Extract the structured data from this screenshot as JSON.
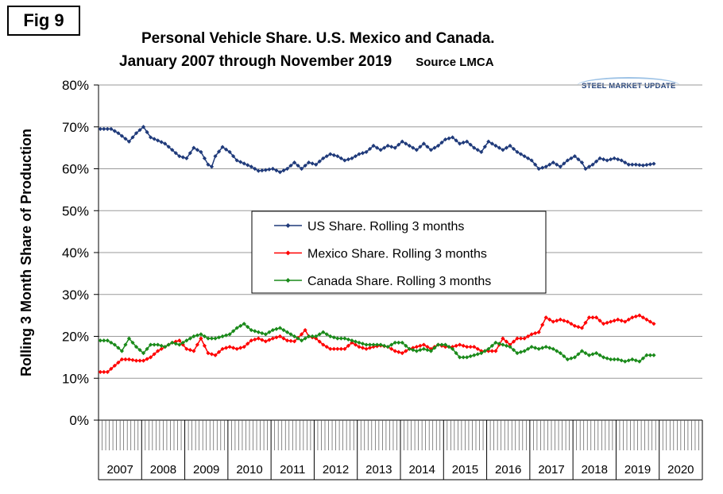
{
  "fig_label": "Fig 9",
  "title_line1": "Personal Vehicle Share. U.S. Mexico and Canada.",
  "title_line2": "January 2007 through November 2019",
  "source": "Source LMCA",
  "brand": "STEEL MARKET UPDATE",
  "chart_data": {
    "type": "line",
    "ylabel": "Rolling 3 Month Share of Production",
    "ylim": [
      0,
      80
    ],
    "yticks": [
      "0%",
      "10%",
      "20%",
      "30%",
      "40%",
      "50%",
      "60%",
      "70%",
      "80%"
    ],
    "x_years": [
      "2007",
      "2008",
      "2009",
      "2010",
      "2011",
      "2012",
      "2013",
      "2014",
      "2015",
      "2016",
      "2017",
      "2018",
      "2019",
      "2020"
    ],
    "x_start": "2007-01",
    "x_end": "2019-11",
    "grid": "horizontal",
    "legend_position": "center",
    "series": [
      {
        "name": "US Share. Rolling 3 months",
        "color": "#1f3a7a",
        "anchors": [
          [
            0,
            69.5
          ],
          [
            3,
            69.5
          ],
          [
            5,
            68.5
          ],
          [
            8,
            66.5
          ],
          [
            10,
            68.5
          ],
          [
            12,
            70
          ],
          [
            14,
            67.5
          ],
          [
            18,
            66
          ],
          [
            22,
            63
          ],
          [
            24,
            62.5
          ],
          [
            26,
            65
          ],
          [
            28,
            64
          ],
          [
            30,
            61
          ],
          [
            31,
            60.5
          ],
          [
            32,
            63
          ],
          [
            34,
            65.2
          ],
          [
            36,
            64
          ],
          [
            38,
            62
          ],
          [
            42,
            60.5
          ],
          [
            44,
            59.5
          ],
          [
            46,
            59.7
          ],
          [
            48,
            60
          ],
          [
            50,
            59.2
          ],
          [
            52,
            60
          ],
          [
            54,
            61.5
          ],
          [
            56,
            60
          ],
          [
            58,
            61.5
          ],
          [
            60,
            61
          ],
          [
            62,
            62.5
          ],
          [
            64,
            63.5
          ],
          [
            66,
            63
          ],
          [
            68,
            62
          ],
          [
            70,
            62.5
          ],
          [
            72,
            63.5
          ],
          [
            74,
            64
          ],
          [
            76,
            65.5
          ],
          [
            78,
            64.5
          ],
          [
            80,
            65.5
          ],
          [
            82,
            65
          ],
          [
            84,
            66.5
          ],
          [
            86,
            65.5
          ],
          [
            88,
            64.5
          ],
          [
            90,
            66
          ],
          [
            92,
            64.5
          ],
          [
            94,
            65.5
          ],
          [
            96,
            67
          ],
          [
            98,
            67.5
          ],
          [
            100,
            66
          ],
          [
            102,
            66.5
          ],
          [
            104,
            65
          ],
          [
            106,
            64
          ],
          [
            108,
            66.5
          ],
          [
            110,
            65.5
          ],
          [
            112,
            64.5
          ],
          [
            114,
            65.5
          ],
          [
            116,
            64
          ],
          [
            118,
            63
          ],
          [
            120,
            62
          ],
          [
            122,
            60
          ],
          [
            124,
            60.5
          ],
          [
            126,
            61.5
          ],
          [
            128,
            60.5
          ],
          [
            130,
            62
          ],
          [
            132,
            63
          ],
          [
            134,
            61.5
          ],
          [
            135,
            60
          ],
          [
            137,
            61
          ],
          [
            139,
            62.5
          ],
          [
            141,
            62
          ],
          [
            143,
            62.5
          ],
          [
            145,
            62
          ],
          [
            147,
            61
          ],
          [
            149,
            61
          ],
          [
            151,
            60.8
          ],
          [
            154,
            61.2
          ]
        ]
      },
      {
        "name": "Mexico Share. Rolling 3 months",
        "color": "#ff0000",
        "anchors": [
          [
            0,
            11.5
          ],
          [
            2,
            11.5
          ],
          [
            4,
            13
          ],
          [
            6,
            14.5
          ],
          [
            8,
            14.5
          ],
          [
            10,
            14.2
          ],
          [
            12,
            14.2
          ],
          [
            14,
            15
          ],
          [
            16,
            16.5
          ],
          [
            18,
            17.5
          ],
          [
            20,
            18.5
          ],
          [
            22,
            19
          ],
          [
            24,
            17
          ],
          [
            26,
            16.5
          ],
          [
            28,
            19.5
          ],
          [
            30,
            16
          ],
          [
            32,
            15.5
          ],
          [
            34,
            17
          ],
          [
            36,
            17.5
          ],
          [
            38,
            17
          ],
          [
            40,
            17.5
          ],
          [
            42,
            19
          ],
          [
            44,
            19.5
          ],
          [
            46,
            18.8
          ],
          [
            48,
            19.5
          ],
          [
            50,
            20
          ],
          [
            52,
            19
          ],
          [
            54,
            18.8
          ],
          [
            56,
            20.5
          ],
          [
            57,
            21.5
          ],
          [
            58,
            20
          ],
          [
            60,
            19.5
          ],
          [
            62,
            18
          ],
          [
            64,
            17
          ],
          [
            66,
            17
          ],
          [
            68,
            17
          ],
          [
            70,
            18.5
          ],
          [
            72,
            17.5
          ],
          [
            74,
            17
          ],
          [
            76,
            17.5
          ],
          [
            78,
            17.8
          ],
          [
            80,
            17.5
          ],
          [
            82,
            16.5
          ],
          [
            84,
            16
          ],
          [
            86,
            17
          ],
          [
            88,
            17.5
          ],
          [
            90,
            18
          ],
          [
            92,
            17
          ],
          [
            94,
            18
          ],
          [
            96,
            17.5
          ],
          [
            98,
            17.5
          ],
          [
            100,
            18
          ],
          [
            102,
            17.5
          ],
          [
            104,
            17.5
          ],
          [
            106,
            16.5
          ],
          [
            108,
            16.5
          ],
          [
            110,
            16.5
          ],
          [
            112,
            19.5
          ],
          [
            114,
            18
          ],
          [
            116,
            19.5
          ],
          [
            118,
            19.5
          ],
          [
            120,
            20.5
          ],
          [
            122,
            21
          ],
          [
            124,
            24.5
          ],
          [
            126,
            23.5
          ],
          [
            128,
            24
          ],
          [
            130,
            23.5
          ],
          [
            132,
            22.5
          ],
          [
            134,
            22
          ],
          [
            136,
            24.5
          ],
          [
            138,
            24.5
          ],
          [
            140,
            23
          ],
          [
            142,
            23.5
          ],
          [
            144,
            24
          ],
          [
            146,
            23.5
          ],
          [
            148,
            24.5
          ],
          [
            150,
            25
          ],
          [
            152,
            24
          ],
          [
            154,
            23
          ]
        ]
      },
      {
        "name": "Canada Share. Rolling 3 months",
        "color": "#1a8a1a",
        "anchors": [
          [
            0,
            19
          ],
          [
            2,
            19
          ],
          [
            4,
            18
          ],
          [
            6,
            16.5
          ],
          [
            8,
            19.5
          ],
          [
            10,
            17.5
          ],
          [
            12,
            16
          ],
          [
            14,
            18
          ],
          [
            16,
            18
          ],
          [
            18,
            17.5
          ],
          [
            20,
            18.5
          ],
          [
            22,
            18
          ],
          [
            24,
            19
          ],
          [
            26,
            20
          ],
          [
            28,
            20.5
          ],
          [
            30,
            19.5
          ],
          [
            32,
            19.5
          ],
          [
            34,
            20
          ],
          [
            36,
            20.5
          ],
          [
            38,
            22
          ],
          [
            40,
            23
          ],
          [
            42,
            21.5
          ],
          [
            44,
            21
          ],
          [
            46,
            20.5
          ],
          [
            48,
            21.5
          ],
          [
            50,
            22
          ],
          [
            52,
            21
          ],
          [
            54,
            20
          ],
          [
            56,
            19
          ],
          [
            58,
            20
          ],
          [
            60,
            20
          ],
          [
            62,
            21
          ],
          [
            64,
            20
          ],
          [
            66,
            19.5
          ],
          [
            68,
            19.5
          ],
          [
            70,
            19
          ],
          [
            72,
            18.5
          ],
          [
            74,
            18
          ],
          [
            76,
            18
          ],
          [
            78,
            18
          ],
          [
            80,
            17.5
          ],
          [
            82,
            18.5
          ],
          [
            84,
            18.5
          ],
          [
            86,
            17
          ],
          [
            88,
            16.5
          ],
          [
            90,
            17
          ],
          [
            92,
            16.5
          ],
          [
            94,
            18
          ],
          [
            96,
            18
          ],
          [
            98,
            17
          ],
          [
            100,
            15
          ],
          [
            102,
            15
          ],
          [
            104,
            15.5
          ],
          [
            106,
            16
          ],
          [
            108,
            17
          ],
          [
            110,
            18.5
          ],
          [
            112,
            18
          ],
          [
            114,
            17.5
          ],
          [
            116,
            16
          ],
          [
            118,
            16.5
          ],
          [
            120,
            17.5
          ],
          [
            122,
            17
          ],
          [
            124,
            17.5
          ],
          [
            126,
            17
          ],
          [
            128,
            16
          ],
          [
            130,
            14.5
          ],
          [
            132,
            15
          ],
          [
            134,
            16.5
          ],
          [
            136,
            15.5
          ],
          [
            138,
            16
          ],
          [
            140,
            15
          ],
          [
            142,
            14.5
          ],
          [
            144,
            14.5
          ],
          [
            146,
            14
          ],
          [
            148,
            14.5
          ],
          [
            150,
            14
          ],
          [
            152,
            15.5
          ],
          [
            154,
            15.5
          ]
        ]
      }
    ]
  }
}
